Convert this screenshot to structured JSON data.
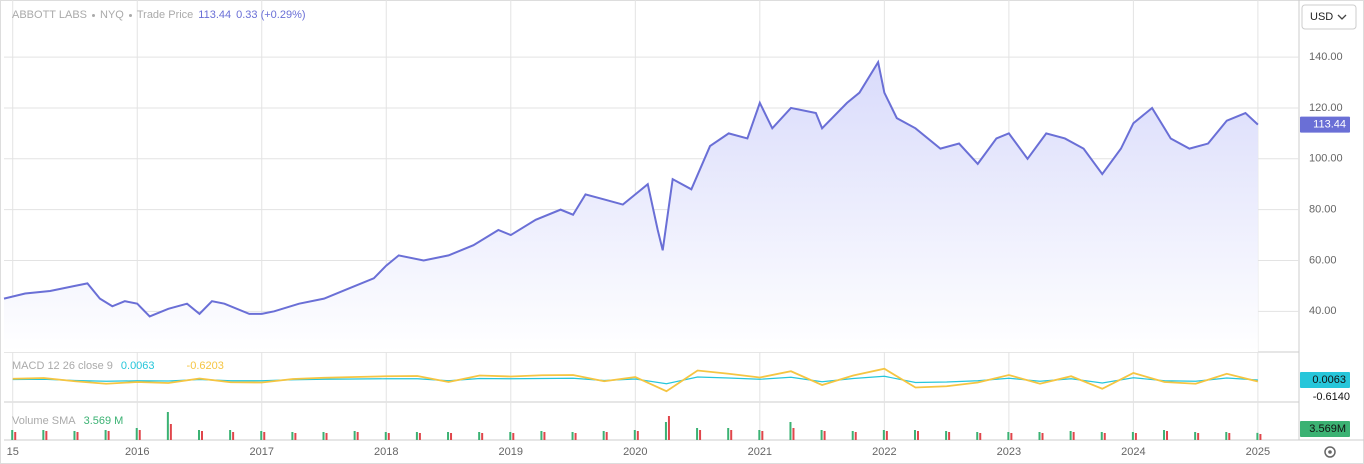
{
  "chart_data": [
    {
      "type": "area",
      "title": "ABBOTT LABS",
      "exchange": "NYQ",
      "price_label": "Trade Price",
      "last_price": 113.44,
      "change": "0.33 (+0.29%)",
      "currency": "USD",
      "color": "#6a6fd6",
      "grid": true,
      "x": [
        2014.93,
        2015.1,
        2015.3,
        2015.5,
        2015.6,
        2015.7,
        2015.8,
        2015.9,
        2016.0,
        2016.1,
        2016.25,
        2016.4,
        2016.5,
        2016.6,
        2016.7,
        2016.9,
        2017.0,
        2017.1,
        2017.3,
        2017.5,
        2017.7,
        2017.9,
        2018.0,
        2018.1,
        2018.3,
        2018.5,
        2018.7,
        2018.9,
        2019.0,
        2019.2,
        2019.4,
        2019.5,
        2019.6,
        2019.75,
        2019.9,
        2020.0,
        2020.1,
        2020.18,
        2020.22,
        2020.3,
        2020.45,
        2020.6,
        2020.75,
        2020.9,
        2021.0,
        2021.1,
        2021.25,
        2021.45,
        2021.5,
        2021.7,
        2021.8,
        2021.95,
        2022.0,
        2022.1,
        2022.25,
        2022.45,
        2022.6,
        2022.75,
        2022.9,
        2023.0,
        2023.15,
        2023.3,
        2023.45,
        2023.6,
        2023.75,
        2023.9,
        2024.0,
        2024.15,
        2024.3,
        2024.45,
        2024.6,
        2024.75,
        2024.9,
        2025.0
      ],
      "values": [
        45,
        47,
        48,
        50,
        51,
        45,
        42,
        44,
        43,
        38,
        41,
        43,
        39,
        44,
        43,
        39,
        39,
        40,
        43,
        45,
        49,
        53,
        58,
        62,
        60,
        62,
        66,
        72,
        70,
        76,
        80,
        78,
        86,
        84,
        82,
        86,
        90,
        72,
        64,
        92,
        88,
        105,
        110,
        108,
        122,
        112,
        120,
        118,
        112,
        122,
        126,
        138,
        126,
        116,
        112,
        104,
        106,
        98,
        108,
        110,
        100,
        110,
        108,
        104,
        94,
        104,
        114,
        120,
        108,
        104,
        106,
        115,
        118,
        113.44
      ],
      "xlim": [
        2014.93,
        2025.33
      ],
      "ylim": [
        24,
        160.5
      ],
      "yticks": [
        {
          "value": 40,
          "label": "40.00"
        },
        {
          "value": 60,
          "label": "60.00"
        },
        {
          "value": 80,
          "label": "80.00"
        },
        {
          "value": 100,
          "label": "100.00"
        },
        {
          "value": 120,
          "label": "120.00"
        },
        {
          "value": 140,
          "label": "140.00"
        }
      ],
      "xticks": [
        {
          "value": 2015,
          "label": "15"
        },
        2016,
        2017,
        2018,
        2019,
        2020,
        2021,
        2022,
        2023,
        2024,
        2025
      ]
    },
    {
      "type": "line",
      "title": "MACD 12 26 close 9",
      "legend_values": [
        0.0063,
        -0.6203
      ],
      "last_values": [
        0.0063,
        -0.614
      ],
      "last_value_labels": [
        "0.0063",
        "-0.6140"
      ],
      "x": [
        2015,
        2015.25,
        2015.5,
        2015.75,
        2016,
        2016.25,
        2016.5,
        2016.75,
        2017,
        2017.25,
        2017.5,
        2017.75,
        2018,
        2018.25,
        2018.5,
        2018.75,
        2019,
        2019.25,
        2019.5,
        2019.75,
        2020,
        2020.25,
        2020.5,
        2020.75,
        2021,
        2021.25,
        2021.5,
        2021.75,
        2022,
        2022.25,
        2022.5,
        2022.75,
        2023,
        2023.25,
        2023.5,
        2023.75,
        2024,
        2024.25,
        2024.5,
        2024.75,
        2025
      ],
      "series": [
        {
          "color": "#26c6da",
          "values": [
            0.2,
            0.3,
            -0.2,
            -0.5,
            -0.3,
            -0.4,
            0.2,
            -0.3,
            -0.3,
            0.1,
            0.3,
            0.4,
            0.5,
            0.5,
            -0.3,
            0.6,
            0.5,
            0.6,
            0.7,
            -0.2,
            0.4,
            -1.5,
            1.2,
            0.8,
            0.3,
            1.1,
            -0.7,
            0.6,
            1.5,
            -1.0,
            -0.8,
            -0.3,
            0.7,
            -0.5,
            0.5,
            -1.2,
            0.9,
            -0.3,
            -0.5,
            0.8,
            0.0063
          ]
        },
        {
          "color": "#f5c542",
          "values": [
            0.5,
            0.8,
            -0.5,
            -1.5,
            -0.8,
            -1.2,
            0.6,
            -0.9,
            -1.0,
            0.4,
            0.9,
            1.2,
            1.5,
            1.6,
            -0.8,
            1.8,
            1.4,
            1.9,
            2.0,
            -0.5,
            1.2,
            -4.5,
            3.8,
            2.5,
            1.0,
            3.5,
            -2.0,
            1.8,
            4.5,
            -3.0,
            -2.5,
            -1.0,
            2.0,
            -1.5,
            1.5,
            -3.5,
            2.8,
            -0.8,
            -1.5,
            2.5,
            -0.6203
          ]
        }
      ],
      "ylim": [
        -8,
        8
      ]
    },
    {
      "type": "bar",
      "title": "Volume SMA",
      "legend_value": "3.569 M",
      "last_value": "3.569M",
      "x": [
        2015,
        2015.25,
        2015.5,
        2015.75,
        2016,
        2016.25,
        2016.5,
        2016.75,
        2017,
        2017.25,
        2017.5,
        2017.75,
        2018,
        2018.25,
        2018.5,
        2018.75,
        2019,
        2019.25,
        2019.5,
        2019.75,
        2020,
        2020.25,
        2020.5,
        2020.75,
        2021,
        2021.25,
        2021.5,
        2021.75,
        2022,
        2022.25,
        2022.5,
        2022.75,
        2023,
        2023.25,
        2023.5,
        2023.75,
        2024,
        2024.25,
        2024.5,
        2024.75,
        2025
      ],
      "series": [
        {
          "color": "#3bb273",
          "values": [
            5,
            5,
            4.5,
            5,
            6,
            14,
            5,
            5,
            4.5,
            4,
            4,
            4.5,
            4,
            4,
            4,
            4,
            4,
            4.5,
            4,
            4.5,
            5,
            9,
            6,
            6,
            5,
            9,
            5,
            4.5,
            5,
            5,
            4.5,
            4,
            4,
            4,
            4.5,
            4,
            4,
            5,
            4,
            4,
            3.569
          ]
        },
        {
          "color": "#e0464b",
          "values": [
            4,
            4.5,
            4,
            4.5,
            5,
            8,
            4.5,
            4,
            4,
            3.5,
            3.5,
            4,
            3.5,
            3.5,
            3.5,
            3.5,
            3.5,
            4,
            3.5,
            4,
            4.5,
            12,
            5,
            5,
            4.5,
            6,
            4.5,
            4,
            4.5,
            4.5,
            4,
            3.5,
            3.5,
            3.5,
            4,
            3.5,
            3.5,
            4.5,
            3.5,
            3.5,
            3
          ]
        }
      ],
      "ylim": [
        0,
        16
      ]
    }
  ]
}
